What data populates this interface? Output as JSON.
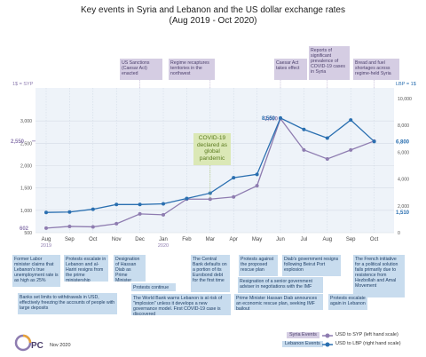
{
  "title": [
    "Key events in Syria and Lebanon and the US dollar exchange rates",
    "(Aug 2019 - Oct 2020)"
  ],
  "chart_data": {
    "type": "line",
    "categories": [
      "Aug",
      "Sep",
      "Oct",
      "Nov",
      "Dec",
      "Jan",
      "Feb",
      "Mar",
      "Apr",
      "May",
      "Jun",
      "Jul",
      "Aug",
      "Sep",
      "Oct"
    ],
    "year_labels": [
      "2019",
      "2020"
    ],
    "left_axis": {
      "label": "1$ = SYP",
      "range": [
        500,
        3500
      ],
      "ticks": [
        "3,000",
        "2,500",
        "2,000",
        "1,500",
        "1,000",
        "500"
      ]
    },
    "right_axis": {
      "label": "LBP = 1$",
      "range": [
        0,
        10000
      ],
      "ticks": [
        "10,000",
        "8,000",
        "6,000",
        "4,000",
        "2,000",
        "0"
      ]
    },
    "series": [
      {
        "name": "USD to SYP (left hand scale)",
        "axis": "left",
        "color": "#8e7cb0",
        "values": [
          602,
          640,
          630,
          700,
          920,
          900,
          1250,
          1250,
          1300,
          1550,
          3050,
          2350,
          2150,
          2350,
          2550
        ]
      },
      {
        "name": "USD to LBP (right hand scale)",
        "axis": "right",
        "color": "#2a6fb0",
        "values": [
          1510,
          1540,
          1750,
          2100,
          2100,
          2150,
          2550,
          2950,
          4100,
          4350,
          8550,
          7700,
          7050,
          8400,
          6800
        ]
      }
    ],
    "labels": [
      {
        "text": "3,050",
        "color": "#8e7cb0"
      },
      {
        "text": "2,550",
        "color": "#8e7cb0"
      },
      {
        "text": "602",
        "color": "#8e7cb0"
      },
      {
        "text": "8,550",
        "color": "#2a6fb0"
      },
      {
        "text": "6,800",
        "color": "#2a6fb0"
      },
      {
        "text": "1,510",
        "color": "#2a6fb0"
      }
    ]
  },
  "syria_events": [
    "US Sanctions (Caesar Act) enacted",
    "Regime recaptures territories in the northwest",
    "Caesar Act takes effect",
    "Reports of significant prevalence of COVID-19 cases in Syria",
    "Bread and fuel shortages across regime-held Syria"
  ],
  "covid": "COVID-19 declared as global pandemic",
  "lebanon_events": [
    "Former Labor minister claims that Lebanon's true unemployment rate is as high as 25%",
    "Protests escalate in Lebanon and al-Hariri resigns from the prime ministership",
    "Banks set limits to withdrawals in USD, effectively freezing the accounts of people with large deposits",
    "Designation of Hassan Diab as Prime Minister",
    "Protests continue",
    "The World Bank warns Lebanon is at risk of \"implosion\" unless it develops a new governance model. First COVID-19 case is discovered",
    "The Central Bank defaults on a portion of its Eurobond debt for the first time",
    "Protests against the proposed rescue plan",
    "Prime Minister Hassan Diab announces an economic rescue plan, seeking IMF bailout",
    "Diab's government resigns following Beirut Port explosion",
    "Resignation of a senior government adviser in negotiations with the IMF",
    "The French initiative for a political solution fails primarily due to resistence from Hezbollah and Amal Movement",
    "Protests escalate again in Lebanon"
  ],
  "legend": [
    {
      "tag": "Syria Events",
      "text": "USD to SYP (left hand scale)"
    },
    {
      "tag": "Lebanon Events",
      "text": "USD to LBP (right hand scale)"
    }
  ],
  "colors": {
    "syp": "#8e7cb0",
    "lbp": "#2a6fb0",
    "syria_box": "#d5cde3",
    "lebanon_box": "#c8dcee",
    "covid_box": "#dbe8b6"
  },
  "footer": {
    "logo_text": "OPC",
    "date": "Nov 2020"
  }
}
